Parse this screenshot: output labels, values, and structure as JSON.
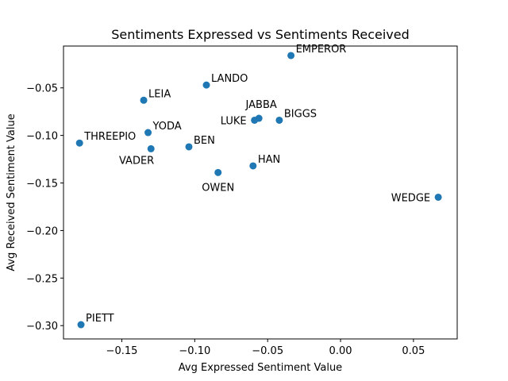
{
  "chart_data": {
    "type": "scatter",
    "title": "Sentiments Expressed vs Sentiments Received",
    "xlabel": "Avg Expressed Sentiment Value",
    "ylabel": "Avg Received Sentiment Value",
    "xlim": [
      -0.19,
      0.08
    ],
    "ylim": [
      -0.314,
      -0.006
    ],
    "grid": false,
    "marker_color": "#1f77b4",
    "x_ticks": [
      {
        "value": -0.15,
        "label": "−0.15"
      },
      {
        "value": -0.1,
        "label": "−0.10"
      },
      {
        "value": -0.05,
        "label": "−0.05"
      },
      {
        "value": 0.0,
        "label": "0.00"
      },
      {
        "value": 0.05,
        "label": "0.05"
      }
    ],
    "y_ticks": [
      {
        "value": -0.05,
        "label": "−0.05"
      },
      {
        "value": -0.1,
        "label": "−0.10"
      },
      {
        "value": -0.15,
        "label": "−0.15"
      },
      {
        "value": -0.2,
        "label": "−0.20"
      },
      {
        "value": -0.25,
        "label": "−0.25"
      },
      {
        "value": -0.3,
        "label": "−0.30"
      }
    ],
    "points": [
      {
        "label": "EMPEROR",
        "x": -0.034,
        "y": -0.016,
        "label_pos": "right"
      },
      {
        "label": "LANDO",
        "x": -0.092,
        "y": -0.047,
        "label_pos": "right"
      },
      {
        "label": "LEIA",
        "x": -0.135,
        "y": -0.063,
        "label_pos": "right"
      },
      {
        "label": "JABBA",
        "x": -0.056,
        "y": -0.082,
        "label_pos": "above"
      },
      {
        "label": "LUKE",
        "x": -0.059,
        "y": -0.084,
        "label_pos": "left"
      },
      {
        "label": "BIGGS",
        "x": -0.042,
        "y": -0.084,
        "label_pos": "right"
      },
      {
        "label": "YODA",
        "x": -0.132,
        "y": -0.097,
        "label_pos": "right"
      },
      {
        "label": "THREEPIO",
        "x": -0.179,
        "y": -0.108,
        "label_pos": "right"
      },
      {
        "label": "BEN",
        "x": -0.104,
        "y": -0.112,
        "label_pos": "right"
      },
      {
        "label": "VADER",
        "x": -0.13,
        "y": -0.114,
        "label_pos": "below-left"
      },
      {
        "label": "OWEN",
        "x": -0.084,
        "y": -0.139,
        "label_pos": "below"
      },
      {
        "label": "HAN",
        "x": -0.06,
        "y": -0.132,
        "label_pos": "right"
      },
      {
        "label": "WEDGE",
        "x": 0.067,
        "y": -0.165,
        "label_pos": "left"
      },
      {
        "label": "PIETT",
        "x": -0.178,
        "y": -0.299,
        "label_pos": "right"
      }
    ]
  }
}
